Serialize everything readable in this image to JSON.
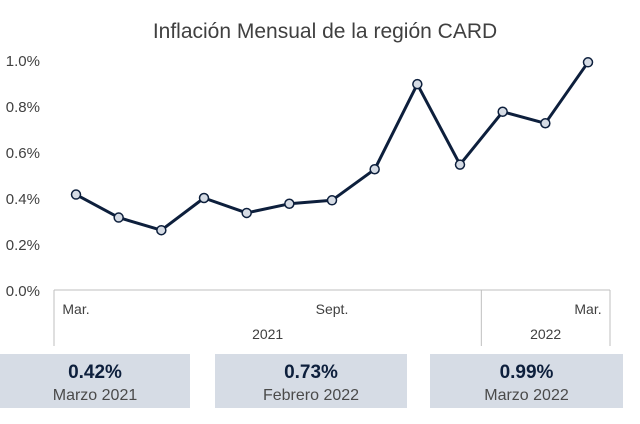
{
  "chart_data": {
    "type": "line",
    "title": "Inflación Mensual de la región CARD",
    "xlabel": "",
    "ylabel": "",
    "ylim": [
      0,
      1.0
    ],
    "yticks": [
      "0.0%",
      "0.2%",
      "0.4%",
      "0.6%",
      "0.8%",
      "1.0%"
    ],
    "x": [
      "2021-03",
      "2021-04",
      "2021-05",
      "2021-06",
      "2021-07",
      "2021-08",
      "2021-09",
      "2021-10",
      "2021-11",
      "2021-12",
      "2022-01",
      "2022-02",
      "2022-03"
    ],
    "series": [
      {
        "values": [
          0.415,
          0.315,
          0.26,
          0.4,
          0.335,
          0.375,
          0.39,
          0.525,
          0.895,
          0.545,
          0.775,
          0.725,
          0.99
        ]
      }
    ],
    "x_tick_labels": [
      {
        "label": "Mar.",
        "index": 0
      },
      {
        "label": "Sept.",
        "index": 6
      },
      {
        "label": "Mar.",
        "index": 12
      }
    ],
    "x_group_labels": [
      {
        "label": "2021",
        "from": 0,
        "to": 9
      },
      {
        "label": "2022",
        "from": 10,
        "to": 12
      }
    ],
    "grid": false,
    "line_color": "#0d1f3c",
    "marker_fill": "#d6dce5"
  },
  "cards": [
    {
      "value": "0.42%",
      "label": "Marzo 2021"
    },
    {
      "value": "0.73%",
      "label": "Febrero 2022"
    },
    {
      "value": "0.99%",
      "label": "Marzo 2022"
    }
  ]
}
